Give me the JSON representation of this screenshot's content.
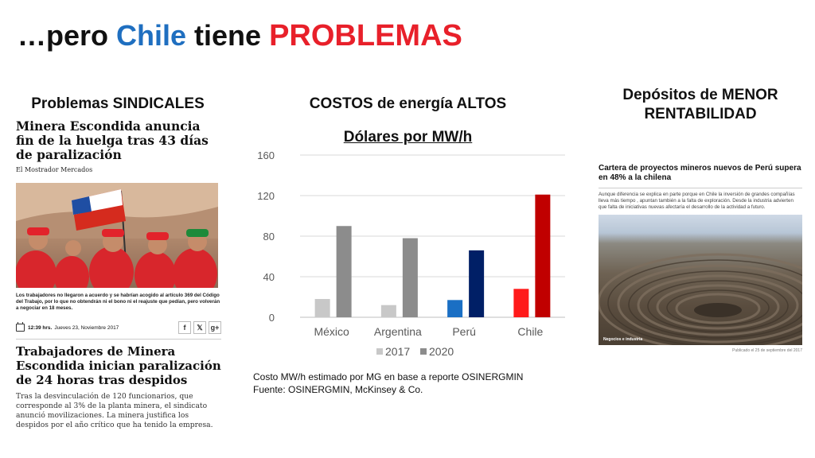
{
  "slide": {
    "title": {
      "part1": "…pero ",
      "part2": "Chile",
      "part3": " tiene ",
      "part4": "PROBLEMAS"
    },
    "title_colors": {
      "chile": "#1f6fc0",
      "problemas": "#e8202a"
    }
  },
  "left": {
    "heading": "Problemas SINDICALES",
    "headline": "Minera Escondida anuncia fin de la huelga tras 43 días de paralización",
    "source": "El Mostrador Mercados",
    "caption": "Los trabajadores no llegaron a acuerdo y se habrían acogido al artículo 369 del Código del Trabajo, por lo que no obtendrán ni el bono ni el reajuste que pedían, pero volverán a negociar en 18 meses.",
    "time": "12:39 hrs.",
    "date": "Jueves 23, Noviembre 2017",
    "social": [
      "f",
      "𝕏",
      "g+"
    ],
    "headline2": "Trabajadores de Minera Escondida inician paralización de 24 horas tras despidos",
    "body": "Tras la desvinculación de 120 funcionarios, que corresponde al 3% de la planta minera, el sindicato anunció movilizaciones. La minera justifica los despidos por el año crítico que ha tenido la empresa."
  },
  "center": {
    "heading": "COSTOS de energía ALTOS",
    "unit_heading": "Dólares por MW/h",
    "note_line1": "Costo MW/h estimado por MG en base a reporte OSINERGMIN",
    "note_line2": "Fuente: OSINERGMIN,  McKinsey & Co."
  },
  "right": {
    "heading": "Depósitos de MENOR RENTABILIDAD",
    "headline": "Cartera de proyectos mineros nuevos de Perú supera en 48% a la chilena",
    "text": "Aunque diferencia se explica en parte porque en Chile la inversión de grandes compañías lleva más tiempo , apuntan también a la falta de exploración. Desde la industria advierten que falta de iniciativas nuevas afectaría el desarrollo de la actividad a futuro.",
    "photo_label": "Negocios e industria",
    "published": "Publicado el 25 de septiembre del 2017"
  },
  "chart_data": {
    "type": "bar",
    "title": "Dólares por MW/h",
    "categories": [
      "México",
      "Argentina",
      "Perú",
      "Chile"
    ],
    "series": [
      {
        "name": "2017",
        "values": [
          18,
          12,
          17,
          28
        ]
      },
      {
        "name": "2020",
        "values": [
          90,
          78,
          66,
          121
        ]
      }
    ],
    "bar_colors": {
      "2017": [
        "#c8c8c8",
        "#c8c8c8",
        "#1a6fc4",
        "#ff1a1a"
      ],
      "2020": [
        "#8c8c8c",
        "#8c8c8c",
        "#001f66",
        "#c00000"
      ]
    },
    "legend_colors": {
      "2017": "#c8c8c8",
      "2020": "#8c8c8c"
    },
    "yticks": [
      0,
      40,
      80,
      120,
      160
    ],
    "ylim": [
      0,
      160
    ],
    "grid": true,
    "legend_position": "bottom"
  }
}
